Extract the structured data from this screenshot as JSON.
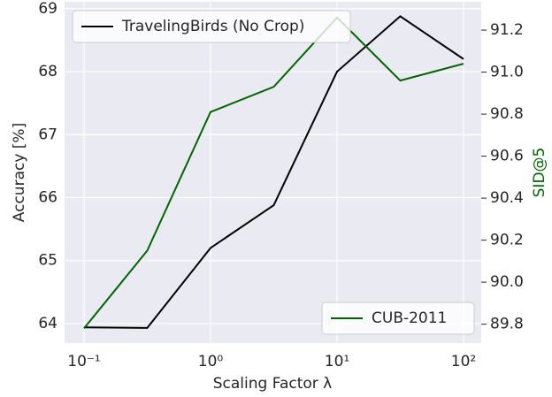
{
  "chart_data": {
    "type": "line",
    "x": [
      0.1,
      0.316,
      1,
      3.16,
      10,
      31.6,
      100
    ],
    "xlabel": "Scaling Factor λ",
    "ylabel": "Accuracy [%]",
    "y2label": "SID@5",
    "y2label_color": "#006400",
    "xscale": "log",
    "xlim": [
      0.0702,
      138
    ],
    "xticks": [
      {
        "value": 0.1,
        "label": "10⁻¹"
      },
      {
        "value": 1,
        "label": "10⁰"
      },
      {
        "value": 10,
        "label": "10¹"
      },
      {
        "value": 100,
        "label": "10²"
      }
    ],
    "ylim": [
      63.69,
      69.11
    ],
    "yticks": [
      64,
      65,
      66,
      67,
      68,
      69
    ],
    "y2lim": [
      89.71,
      91.335
    ],
    "y2ticks": [
      89.8,
      {
        "value": 90.0,
        "label": "90.0"
      },
      90.2,
      90.4,
      90.6,
      90.8,
      {
        "value": 91.0,
        "label": "91.0"
      },
      91.2
    ],
    "grid": true,
    "series": [
      {
        "name": "TravelingBirds (No Crop)",
        "color": "#000000",
        "legend": "upper left",
        "values": [
          63.94,
          63.93,
          65.2,
          65.88,
          68.0,
          68.88,
          68.2
        ]
      },
      {
        "name": "CUB-2011",
        "color": "#006400",
        "axis": "y2",
        "legend": "lower right",
        "values": [
          89.78,
          90.15,
          90.81,
          90.93,
          91.26,
          90.96,
          91.04
        ]
      }
    ]
  }
}
